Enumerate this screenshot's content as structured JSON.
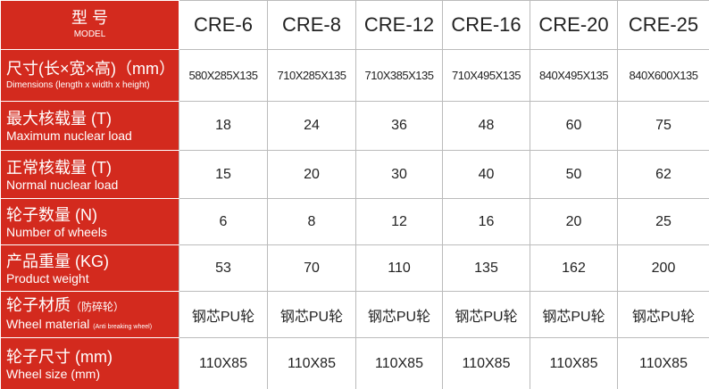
{
  "header": {
    "title_zh": "型 号",
    "title_en": "MODEL",
    "models": [
      "CRE-6",
      "CRE-8",
      "CRE-12",
      "CRE-16",
      "CRE-20",
      "CRE-25"
    ]
  },
  "rows": [
    {
      "label_zh": "尺寸(长×宽×高)（mm）",
      "label_en": "Dimensions (length x width x height)",
      "values": [
        "580X285X135",
        "710X285X135",
        "710X385X135",
        "710X495X135",
        "840X495X135",
        "840X600X135"
      ]
    },
    {
      "label_zh": "最大核载量 (T)",
      "label_en": "Maximum nuclear load",
      "values": [
        18,
        24,
        36,
        48,
        60,
        75
      ]
    },
    {
      "label_zh": "正常核载量 (T)",
      "label_en": "Normal nuclear load",
      "values": [
        15,
        20,
        30,
        40,
        50,
        62
      ]
    },
    {
      "label_zh": "轮子数量  (N)",
      "label_en": "Number of wheels",
      "values": [
        6,
        8,
        12,
        16,
        20,
        25
      ]
    },
    {
      "label_zh": "产品重量 (KG)",
      "label_en": "Product weight",
      "values": [
        53,
        70,
        110,
        135,
        162,
        200
      ]
    },
    {
      "label_zh": "轮子材质",
      "note_zh": "（防碎轮）",
      "label_en": "Wheel material",
      "note_en": "(Anti breaking wheel)",
      "values": [
        "钢芯PU轮",
        "钢芯PU轮",
        "钢芯PU轮",
        "钢芯PU轮",
        "钢芯PU轮",
        "钢芯PU轮"
      ]
    },
    {
      "label_zh": "轮子尺寸 (mm)",
      "label_en": "Wheel size (mm)",
      "values": [
        "110X85",
        "110X85",
        "110X85",
        "110X85",
        "110X85",
        "110X85"
      ]
    }
  ]
}
